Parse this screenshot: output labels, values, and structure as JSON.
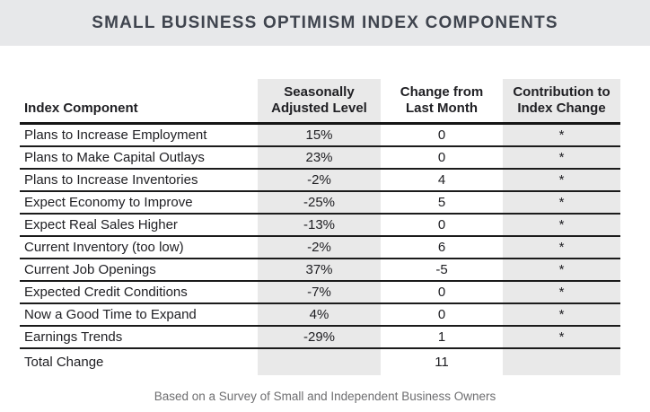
{
  "title": "SMALL BUSINESS OPTIMISM INDEX COMPONENTS",
  "footer": "Based on a Survey of Small and Independent Business Owners",
  "colors": {
    "banner_bg": "#e7e8ea",
    "title_text": "#3f444e",
    "shaded_column_bg": "#e9e9e9",
    "rule_line": "#1b1b1b",
    "body_text": "#202024",
    "footer_text": "#6e6e70"
  },
  "chart_data": {
    "type": "table",
    "title": "SMALL BUSINESS OPTIMISM INDEX COMPONENTS",
    "columns": [
      "Index Component",
      "Seasonally Adjusted Level",
      "Change from Last Month",
      "Contribution to Index Change"
    ],
    "header_display": {
      "component": "Index Component",
      "level": "Seasonally\nAdjusted Level",
      "change": "Change from\nLast Month",
      "contribution": "Contribution to\nIndex Change"
    },
    "rows": [
      {
        "component": "Plans to Increase Employment",
        "level": "15%",
        "change": "0",
        "contribution": "*"
      },
      {
        "component": "Plans to Make Capital Outlays",
        "level": "23%",
        "change": "0",
        "contribution": "*"
      },
      {
        "component": "Plans to Increase Inventories",
        "level": "-2%",
        "change": "4",
        "contribution": "*"
      },
      {
        "component": "Expect Economy to Improve",
        "level": "-25%",
        "change": "5",
        "contribution": "*"
      },
      {
        "component": "Expect Real Sales Higher",
        "level": "-13%",
        "change": "0",
        "contribution": "*"
      },
      {
        "component": "Current Inventory (too low)",
        "level": "-2%",
        "change": "6",
        "contribution": "*"
      },
      {
        "component": "Current Job Openings",
        "level": "37%",
        "change": "-5",
        "contribution": "*"
      },
      {
        "component": "Expected Credit Conditions",
        "level": "-7%",
        "change": "0",
        "contribution": "*"
      },
      {
        "component": "Now a Good Time to Expand",
        "level": "4%",
        "change": "0",
        "contribution": "*"
      },
      {
        "component": "Earnings Trends",
        "level": "-29%",
        "change": "1",
        "contribution": "*"
      },
      {
        "component": "Total Change",
        "level": "",
        "change": "11",
        "contribution": ""
      }
    ],
    "note": "Based on a Survey of Small and Independent Business Owners"
  }
}
